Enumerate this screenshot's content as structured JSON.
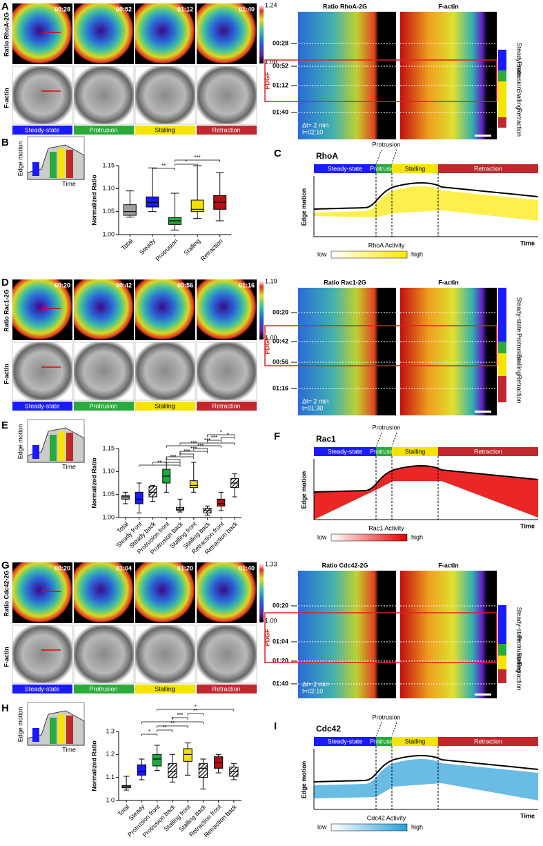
{
  "panels": [
    {
      "letter": "A",
      "ratio_label": "Ratio RhoA-2G",
      "actin_label": "F-actin",
      "times": [
        "00:28",
        "00:52",
        "01:12",
        "01:40"
      ],
      "colorbar": [
        "1.24",
        "1.00"
      ],
      "phases": [
        "Steady-state",
        "Protrusion",
        "Stalling",
        "Retraction"
      ],
      "kymo_titles": [
        "Ratio RhoA-2G",
        "F-actin"
      ],
      "stimulus": "PDGF",
      "interval": "Δt= 2 min",
      "total": "t=02:10"
    },
    {
      "letter": "D",
      "ratio_label": "Ratio Rac1-2G",
      "actin_label": "F-actin",
      "times": [
        "00:20",
        "00:42",
        "00:56",
        "01:16"
      ],
      "colorbar": [
        "1.19",
        "1.00"
      ],
      "phases": [
        "Steady-state",
        "Protrusion",
        "Stalling",
        "Retraction"
      ],
      "kymo_titles": [
        "Ratio Rac1-2G",
        "F-actin"
      ],
      "stimulus": "PDGF",
      "interval": "Δt= 2 min",
      "total": "t=01:30"
    },
    {
      "letter": "G",
      "ratio_label": "Ratio Cdc42-2G",
      "actin_label": "F-actin",
      "times": [
        "00:20",
        "01:04",
        "01:20",
        "01:40"
      ],
      "colorbar": [
        "1.33",
        "1.00"
      ],
      "phases": [
        "Steady-state",
        "Protrusion",
        "Stalling",
        "Retraction"
      ],
      "kymo_titles": [
        "Ratio Cdc42-2G",
        "F-actin"
      ],
      "stimulus": "PDGF",
      "interval": "Δt= 2 min",
      "total": "t=02:10"
    }
  ],
  "schematics": [
    {
      "letter": "C",
      "title": "RhoA",
      "phases": [
        "Steady-state",
        "Protrusion",
        "Stalling",
        "Retraction"
      ],
      "marker": "Protrusion",
      "ylabel": "Edge motion",
      "xlabel": "Time",
      "legend": "RhoA Activity",
      "low": "low",
      "high": "high",
      "color": "#ffe800"
    },
    {
      "letter": "F",
      "title": "Rac1",
      "phases": [
        "Steady-state",
        "Protrusion",
        "Stalling",
        "Retraction"
      ],
      "marker": "Protrusion",
      "ylabel": "Edge motion",
      "xlabel": "Time",
      "legend": "Rac1 Activity",
      "low": "low",
      "high": "high",
      "color": "#e60000"
    },
    {
      "letter": "I",
      "title": "Cdc42",
      "phases": [
        "Steady-state",
        "Protrusion",
        "Stalling",
        "Retraction"
      ],
      "marker": "Protrusion",
      "ylabel": "Edge motion",
      "xlabel": "Time",
      "legend": "Cdc42 Activity",
      "low": "low",
      "high": "high",
      "color": "#2a9fd8"
    }
  ],
  "chart_data": [
    {
      "type": "box",
      "letter": "B",
      "ylabel": "Normalized Ratio",
      "inset": {
        "ylabel": "Edge motion",
        "xlabel": "Time"
      },
      "categories": [
        "Total",
        "Steady",
        "Protrusion",
        "Stalling",
        "Retraction"
      ],
      "values": [
        [
          1.038,
          1.042,
          1.05,
          1.065,
          1.095
        ],
        [
          1.05,
          1.06,
          1.07,
          1.082,
          1.145
        ],
        [
          1.01,
          1.022,
          1.03,
          1.037,
          1.09
        ],
        [
          1.035,
          1.05,
          1.055,
          1.075,
          1.15
        ],
        [
          1.03,
          1.055,
          1.07,
          1.085,
          1.135
        ]
      ],
      "colors": [
        "#a0a0a0",
        "#1a1aff",
        "#1aaa3a",
        "#f2e200",
        "#b01010"
      ],
      "hatched": [
        false,
        false,
        false,
        false,
        false
      ],
      "ylim": [
        1.0,
        1.15
      ],
      "yticks": [
        {
          "value": 1.0,
          "label": "1.00"
        },
        {
          "value": 1.05,
          "label": "1.05"
        },
        {
          "value": 1.1,
          "label": "1.10"
        },
        {
          "value": 1.15,
          "label": "1.15"
        }
      ],
      "annotations": [
        "**",
        "*",
        "***"
      ]
    },
    {
      "type": "box",
      "letter": "E",
      "ylabel": "Normalized Ratio",
      "inset": {
        "ylabel": "Edge motion",
        "xlabel": "Time"
      },
      "categories": [
        "Total",
        "Steady front",
        "Steady back",
        "Protrusion front",
        "Protrusion back",
        "Stalling front",
        "Stalling back",
        "Retraction front",
        "Retraction back"
      ],
      "values": [
        [
          1.03,
          1.04,
          1.045,
          1.048,
          1.055
        ],
        [
          1.01,
          1.03,
          1.04,
          1.055,
          1.075
        ],
        [
          1.035,
          1.045,
          1.055,
          1.068,
          1.07
        ],
        [
          1.055,
          1.075,
          1.09,
          1.105,
          1.12
        ],
        [
          1.012,
          1.016,
          1.018,
          1.022,
          1.04
        ],
        [
          1.055,
          1.065,
          1.07,
          1.08,
          1.12
        ],
        [
          1.005,
          1.01,
          1.015,
          1.02,
          1.025
        ],
        [
          1.015,
          1.025,
          1.03,
          1.04,
          1.055
        ],
        [
          1.045,
          1.065,
          1.075,
          1.085,
          1.095
        ]
      ],
      "colors": [
        "#a0a0a0",
        "#1a1aff",
        "#1a1aff",
        "#1aaa3a",
        "#1aaa3a",
        "#f2e200",
        "#f2e200",
        "#b01010",
        "#b01010"
      ],
      "hatched": [
        false,
        false,
        true,
        false,
        true,
        false,
        true,
        false,
        true
      ],
      "ylim": [
        1.0,
        1.15
      ],
      "yticks": [
        {
          "value": 1.0,
          "label": "1.00"
        },
        {
          "value": 1.05,
          "label": "1.05"
        },
        {
          "value": 1.1,
          "label": "1.10"
        },
        {
          "value": 1.15,
          "label": "1.15"
        }
      ],
      "annotations": [
        "**",
        "*",
        "***",
        "*",
        "***",
        "***",
        "***",
        "***",
        "***",
        "***",
        "*",
        "*"
      ]
    },
    {
      "type": "box",
      "letter": "H",
      "ylabel": "Normalized Ratio",
      "inset": {
        "ylabel": "Edge motion",
        "xlabel": "Time"
      },
      "categories": [
        "Total",
        "Steady",
        "Protrusion front",
        "Protrusion back",
        "Stalling front",
        "Stalling back",
        "Retraction front",
        "Retraction back"
      ],
      "values": [
        [
          1.045,
          1.055,
          1.06,
          1.065,
          1.105
        ],
        [
          1.09,
          1.11,
          1.125,
          1.155,
          1.18
        ],
        [
          1.13,
          1.15,
          1.18,
          1.2,
          1.24
        ],
        [
          1.08,
          1.1,
          1.125,
          1.16,
          1.2
        ],
        [
          1.11,
          1.17,
          1.2,
          1.225,
          1.25
        ],
        [
          1.05,
          1.1,
          1.14,
          1.16,
          1.18
        ],
        [
          1.12,
          1.14,
          1.165,
          1.19,
          1.2
        ],
        [
          1.09,
          1.105,
          1.125,
          1.145,
          1.16
        ]
      ],
      "colors": [
        "#a0a0a0",
        "#1a1aff",
        "#1aaa3a",
        "#1aaa3a",
        "#f2e200",
        "#f2e200",
        "#b01010",
        "#b01010"
      ],
      "hatched": [
        false,
        false,
        false,
        true,
        false,
        true,
        false,
        true
      ],
      "ylim": [
        1.0,
        1.3
      ],
      "yticks": [
        {
          "value": 1.0,
          "label": "1.0"
        },
        {
          "value": 1.1,
          "label": "1.1"
        },
        {
          "value": 1.2,
          "label": "1.2"
        },
        {
          "value": 1.3,
          "label": "1.3"
        }
      ],
      "annotations": [
        "*",
        "**",
        "**",
        "*",
        "***",
        "**",
        "*"
      ]
    }
  ]
}
